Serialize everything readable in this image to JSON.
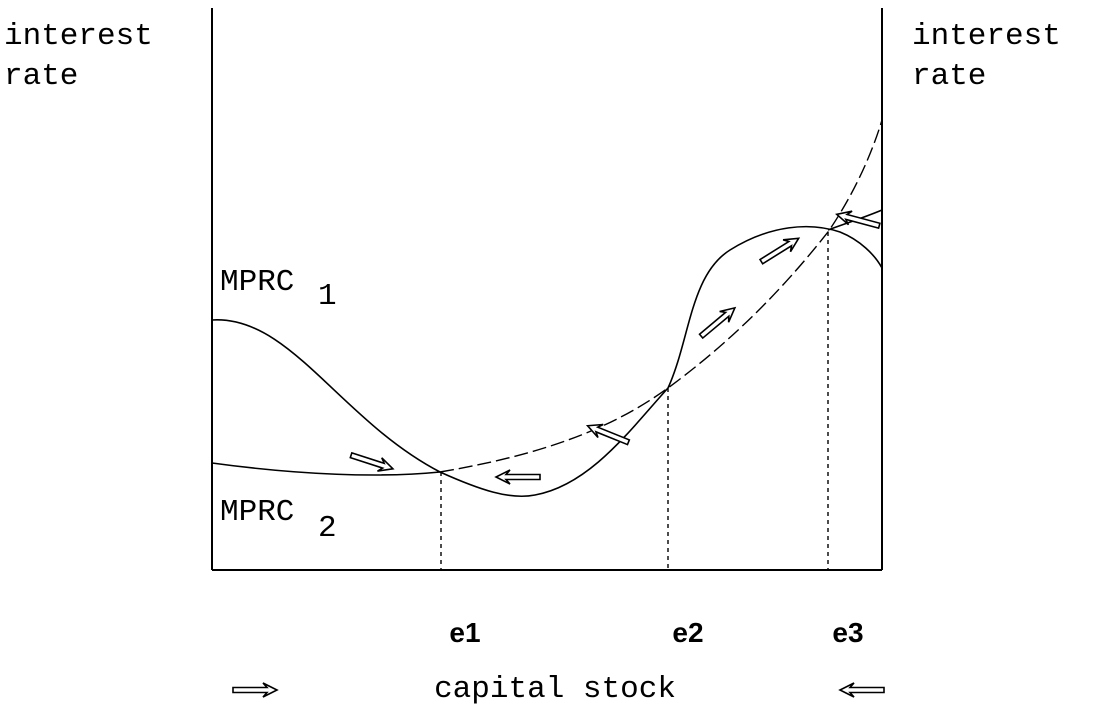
{
  "y_axis_left": {
    "label_lines": [
      "interest",
      "rate"
    ]
  },
  "y_axis_right": {
    "label_lines": [
      "interest",
      "rate"
    ]
  },
  "curves": [
    {
      "name": "MPRC",
      "subscript": "1"
    },
    {
      "name": "MPRC",
      "subscript": "2"
    }
  ],
  "equilibria": [
    {
      "label": "e1"
    },
    {
      "label": "e2"
    },
    {
      "label": "e3"
    }
  ],
  "x_axis": {
    "label": "capital stock"
  }
}
